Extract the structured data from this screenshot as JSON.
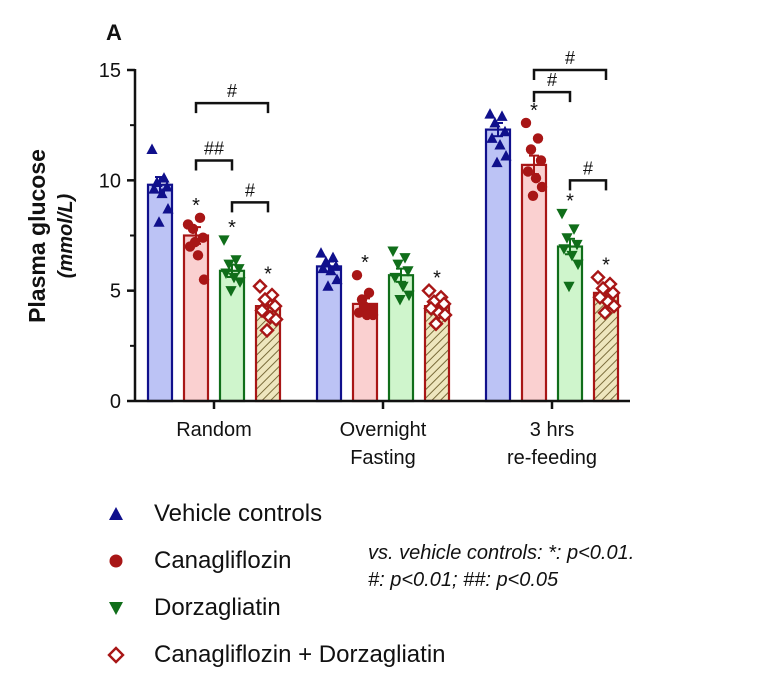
{
  "panel_label": "A",
  "colors": {
    "vehicle_fill": "#BCC3F5",
    "vehicle_stroke": "#10108C",
    "cana_fill": "#FAD0D0",
    "cana_stroke": "#A81616",
    "dorza_fill": "#CFF5CC",
    "dorza_stroke": "#106E1A",
    "combo_fill": "#EEE6BE",
    "combo_hatch": "#7A6C3A",
    "combo_stroke": "#A81616"
  },
  "chart_data": {
    "type": "bar",
    "ylabel": "Plasma glucose",
    "yunit": "(mmol/L)",
    "ylim": [
      0,
      15
    ],
    "yticks": [
      0,
      5,
      10,
      15
    ],
    "categories": [
      [
        "Random"
      ],
      [
        "Overnight",
        "Fasting"
      ],
      [
        "3 hrs",
        "re-feeding"
      ]
    ],
    "series": [
      {
        "name": "Vehicle controls",
        "marker": "triangle-up",
        "values": [
          9.8,
          6.1,
          12.3
        ],
        "points": [
          [
            11.4,
            10.1,
            9.9,
            9.7,
            9.6,
            9.4,
            8.7,
            8.1
          ],
          [
            6.7,
            6.5,
            6.3,
            6.1,
            6.0,
            5.9,
            5.5,
            5.2
          ],
          [
            13.0,
            12.9,
            12.6,
            12.2,
            11.9,
            11.6,
            11.1,
            10.8
          ]
        ],
        "sig": [
          "",
          "",
          ""
        ]
      },
      {
        "name": "Canagliflozin",
        "marker": "circle",
        "values": [
          7.5,
          4.4,
          10.7
        ],
        "points": [
          [
            8.0,
            8.3,
            7.8,
            7.4,
            7.0,
            6.6,
            5.5,
            7.2
          ],
          [
            5.7,
            4.9,
            4.6,
            4.2,
            4.0,
            3.9,
            3.9,
            4.3
          ],
          [
            12.6,
            11.9,
            11.4,
            10.9,
            10.4,
            10.1,
            9.7,
            9.3
          ]
        ],
        "sig": [
          "*",
          "*",
          "*"
        ]
      },
      {
        "name": "Dorzagliatin",
        "marker": "triangle-down",
        "values": [
          5.9,
          5.7,
          7.0
        ],
        "points": [
          [
            7.3,
            6.4,
            6.2,
            6.0,
            5.8,
            5.6,
            5.4,
            5.0
          ],
          [
            6.8,
            6.5,
            6.2,
            5.9,
            5.6,
            5.2,
            4.8,
            4.6
          ],
          [
            8.5,
            7.8,
            7.4,
            7.1,
            6.9,
            6.6,
            6.2,
            5.2
          ]
        ],
        "sig": [
          "*",
          "",
          "*"
        ]
      },
      {
        "name": "Canagliflozin + Dorzagliatin",
        "marker": "diamond-open",
        "values": [
          4.3,
          4.3,
          4.9
        ],
        "points": [
          [
            5.2,
            4.8,
            4.6,
            4.3,
            4.1,
            3.8,
            3.7,
            3.2
          ],
          [
            5.0,
            4.7,
            4.5,
            4.4,
            4.2,
            4.0,
            3.9,
            3.5
          ],
          [
            5.6,
            5.3,
            5.1,
            4.9,
            4.7,
            4.5,
            4.3,
            4.0
          ]
        ],
        "sig": [
          "*",
          "*",
          "*"
        ]
      }
    ],
    "errors": [
      [
        0.35,
        0.22,
        0.3
      ],
      [
        0.38,
        0.25,
        0.42
      ],
      [
        0.28,
        0.3,
        0.35
      ],
      [
        0.25,
        0.18,
        0.2
      ]
    ],
    "brackets": [
      {
        "group": 0,
        "from": 1,
        "to": 3,
        "y": 13.5,
        "label": "#"
      },
      {
        "group": 0,
        "from": 1,
        "to": 2,
        "y": 10.9,
        "label": "##"
      },
      {
        "group": 0,
        "from": 2,
        "to": 3,
        "y": 9.0,
        "label": "#"
      },
      {
        "group": 2,
        "from": 1,
        "to": 3,
        "y": 15.0,
        "label": "#"
      },
      {
        "group": 2,
        "from": 1,
        "to": 2,
        "y": 14.0,
        "label": "#"
      },
      {
        "group": 2,
        "from": 2,
        "to": 3,
        "y": 10.0,
        "label": "#"
      }
    ]
  },
  "legend": {
    "items": [
      {
        "label": "Vehicle controls",
        "marker": "triangle-up"
      },
      {
        "label": "Canagliflozin",
        "marker": "circle"
      },
      {
        "label": "Dorzagliatin",
        "marker": "triangle-down"
      },
      {
        "label": "Canagliflozin + Dorzagliatin",
        "marker": "diamond-open"
      }
    ]
  },
  "note": {
    "line1": "vs. vehicle controls: *: p<0.01.",
    "line2": "#: p<0.01; ##: p<0.05"
  }
}
